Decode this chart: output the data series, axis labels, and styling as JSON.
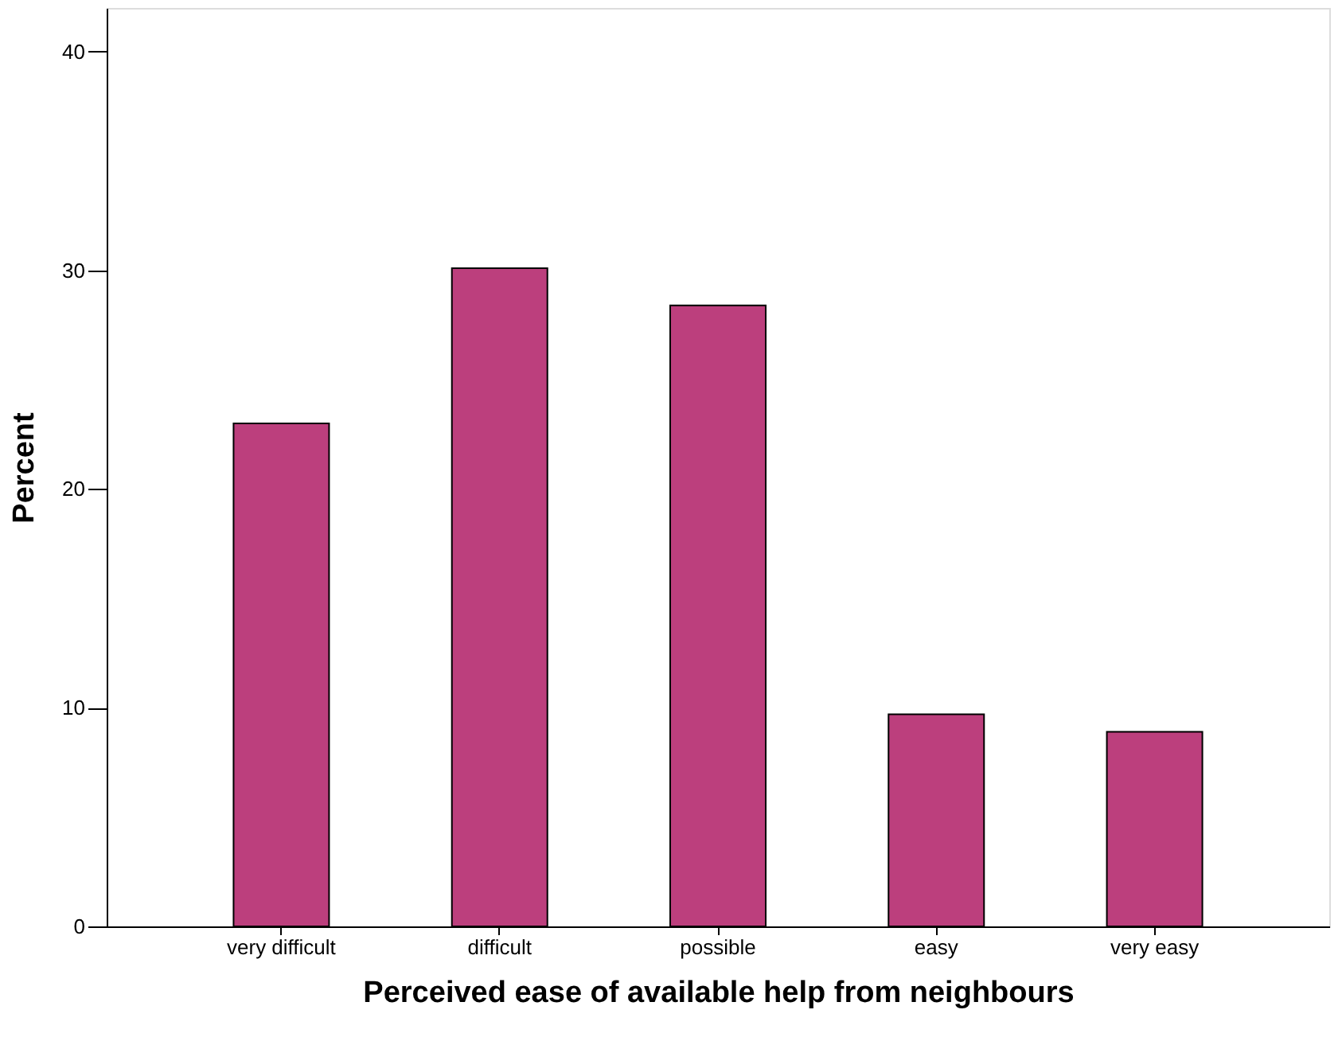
{
  "chart_data": {
    "type": "bar",
    "xlabel": "Perceived ease of available help from neighbours",
    "ylabel": "Percent",
    "categories": [
      "very difficult",
      "difficult",
      "possible",
      "easy",
      "very easy"
    ],
    "values": [
      23.0,
      30.1,
      28.4,
      9.7,
      8.9
    ],
    "color": "#bc3f7d",
    "ylim": [
      0,
      42
    ],
    "yticks": [
      0,
      10,
      20,
      30,
      40
    ],
    "grid": false
  }
}
